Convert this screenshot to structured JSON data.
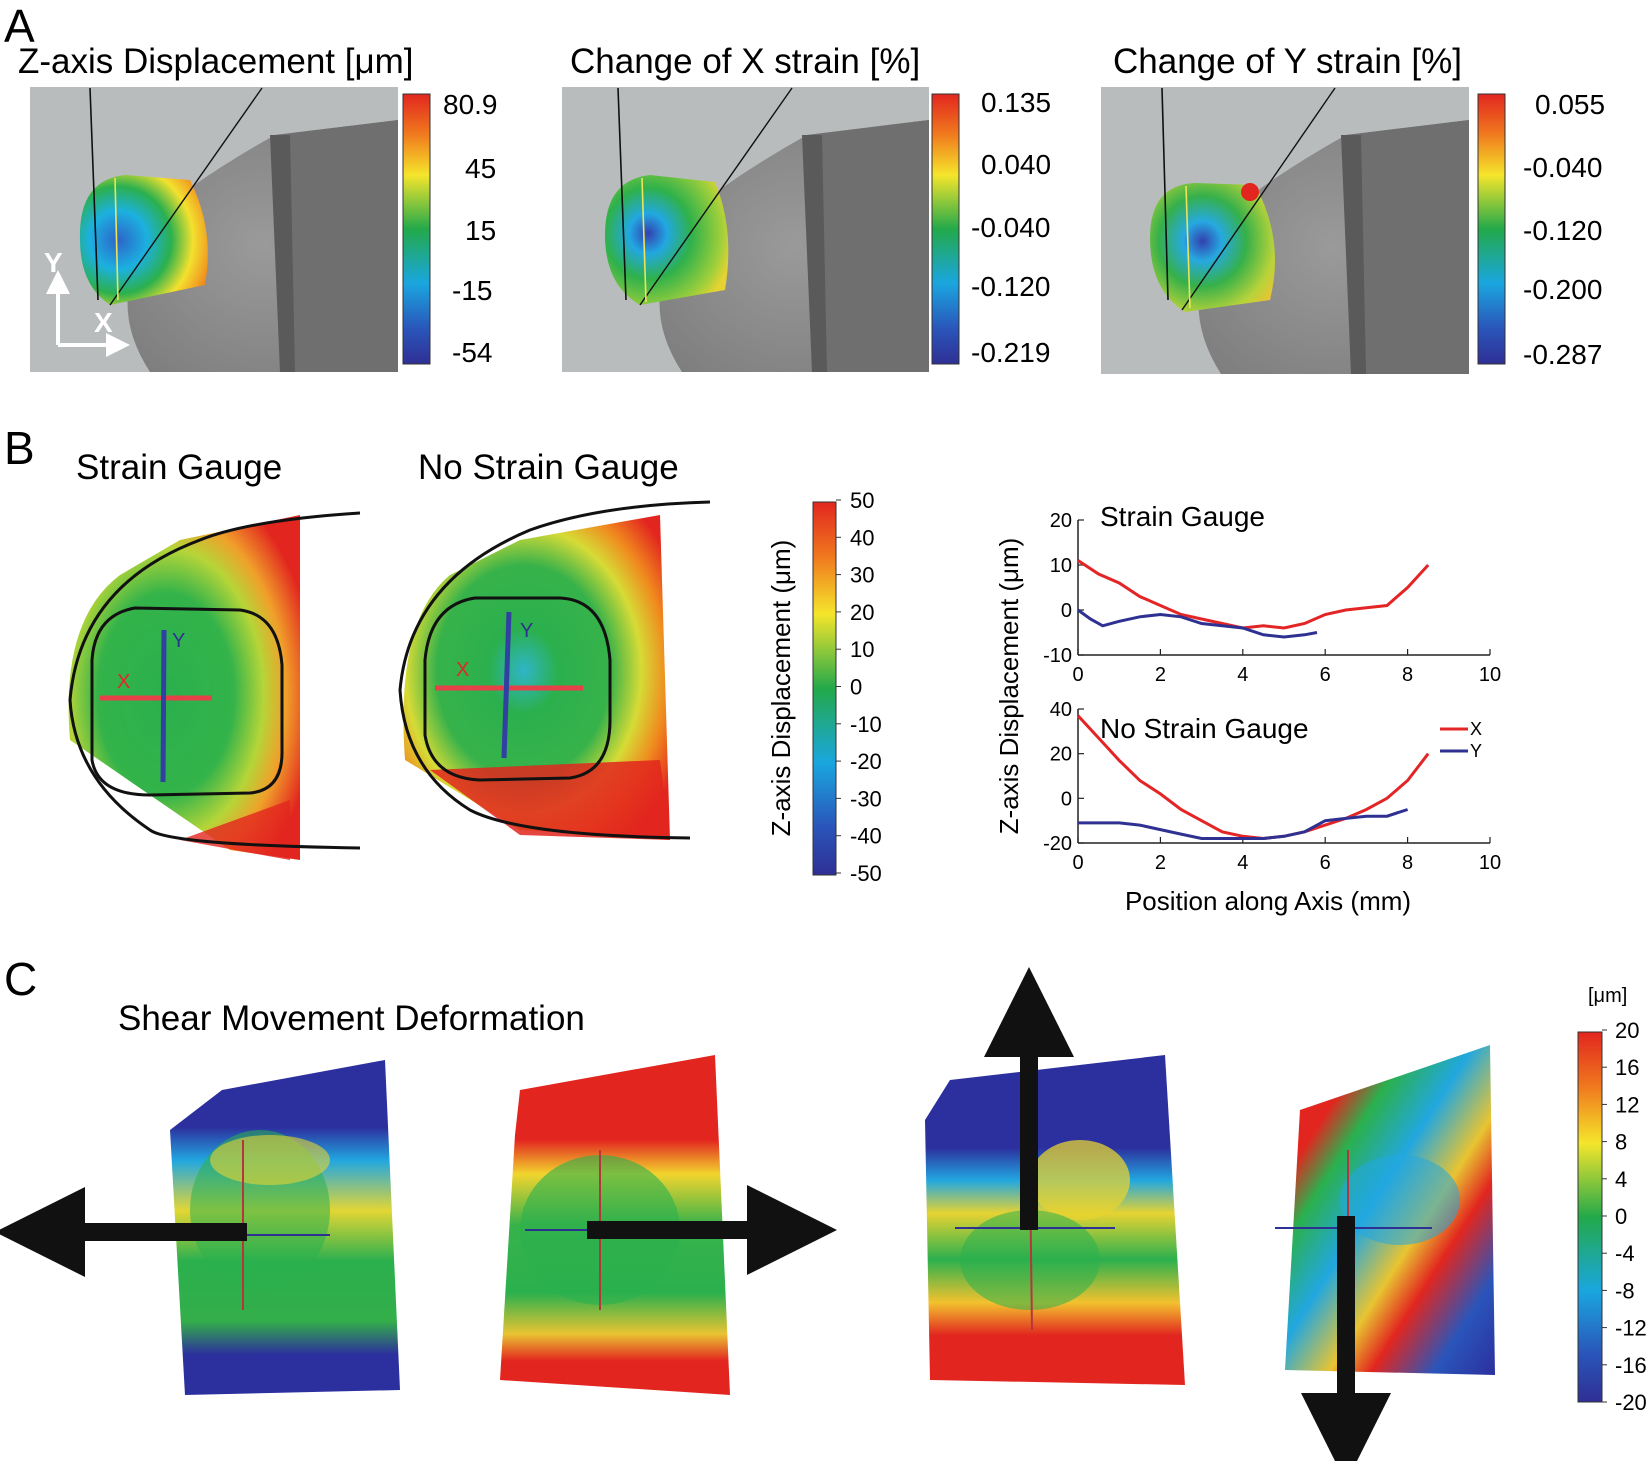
{
  "panel_a": {
    "letter": "A",
    "axis_glyphs": {
      "y": "Y",
      "x": "X"
    },
    "maps": [
      {
        "title": "Z-axis Displacement [μm]",
        "ticks": [
          "80.9",
          "45",
          "15",
          "-15",
          "-54"
        ]
      },
      {
        "title": "Change of X strain [%]",
        "ticks": [
          "0.135",
          "0.040",
          "-0.040",
          "-0.120",
          "-0.219"
        ]
      },
      {
        "title": "Change of Y strain [%]",
        "ticks": [
          "0.055",
          "-0.040",
          "-0.120",
          "-0.200",
          "-0.287"
        ]
      }
    ]
  },
  "panel_b": {
    "letter": "B",
    "map_titles": [
      "Strain Gauge",
      "No Strain Gauge"
    ],
    "axis_markers": {
      "x": "X",
      "y": "Y"
    },
    "colorbar": {
      "label": "Z-axis Displacement (μm)",
      "ticks": [
        "50",
        "40",
        "30",
        "20",
        "10",
        "0",
        "-10",
        "-20",
        "-30",
        "-40",
        "-50"
      ]
    }
  },
  "panel_c": {
    "letter": "C",
    "title": "Shear Movement Deformation",
    "colorbar": {
      "unit": "[μm]",
      "ticks": [
        "20",
        "16",
        "12",
        "8",
        "4",
        "0",
        "-4",
        "-8",
        "-12",
        "-16",
        "-20"
      ]
    }
  },
  "chart_data": [
    {
      "type": "line",
      "title": "Strain Gauge",
      "xlabel": "",
      "ylabel": "Z-axis Displacement (μm)",
      "xlim": [
        0,
        10
      ],
      "ylim": [
        -10,
        20
      ],
      "xticks": [
        "0",
        "2",
        "4",
        "6",
        "8",
        "10"
      ],
      "yticks": [
        "20",
        "10",
        "0",
        "-10"
      ],
      "series": [
        {
          "color": "#e32526",
          "x": [
            0,
            0.5,
            1,
            1.5,
            2,
            2.5,
            3,
            3.5,
            4,
            4.5,
            5,
            5.5,
            6,
            6.5,
            7,
            7.5,
            8,
            8.5
          ],
          "y": [
            11,
            8,
            6,
            3,
            1,
            -1,
            -2,
            -3,
            -4,
            -3.5,
            -4,
            -3,
            -1,
            0,
            0.5,
            1,
            5,
            10
          ]
        },
        {
          "color": "#2e3192",
          "x": [
            0,
            0.3,
            0.6,
            1,
            1.5,
            2,
            2.5,
            3,
            3.5,
            4,
            4.5,
            5,
            5.5,
            5.8
          ],
          "y": [
            0,
            -2,
            -3.5,
            -2.5,
            -1.5,
            -1,
            -1.5,
            -3,
            -3.5,
            -4,
            -5.5,
            -6,
            -5.5,
            -5
          ]
        }
      ]
    },
    {
      "type": "line",
      "title": "No Strain Gauge",
      "xlabel": "Position along Axis (mm)",
      "ylabel": "Z-axis Displacement (μm)",
      "xlim": [
        0,
        10
      ],
      "ylim": [
        -20,
        40
      ],
      "xticks": [
        "0",
        "2",
        "4",
        "6",
        "8",
        "10"
      ],
      "yticks": [
        "40",
        "20",
        "0",
        "-20"
      ],
      "legend": "right",
      "series": [
        {
          "name": "X",
          "color": "#e32526",
          "x": [
            0,
            0.5,
            1,
            1.5,
            2,
            2.5,
            3,
            3.5,
            4,
            4.5,
            5,
            5.5,
            6,
            6.5,
            7,
            7.5,
            8,
            8.5
          ],
          "y": [
            37,
            27,
            17,
            8,
            2,
            -5,
            -10,
            -15,
            -17,
            -18,
            -17,
            -15,
            -12,
            -9,
            -5,
            0,
            8,
            20
          ]
        },
        {
          "name": "Y",
          "color": "#2e3192",
          "x": [
            0,
            0.5,
            1,
            1.5,
            2,
            2.5,
            3,
            3.5,
            4,
            4.5,
            5,
            5.5,
            6,
            6.5,
            7,
            7.5,
            8
          ],
          "y": [
            -11,
            -11,
            -11,
            -12,
            -14,
            -16,
            -18,
            -18,
            -18,
            -18,
            -17,
            -15,
            -10,
            -9,
            -8,
            -8,
            -5
          ]
        }
      ]
    }
  ]
}
